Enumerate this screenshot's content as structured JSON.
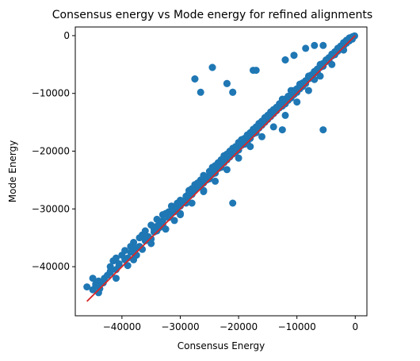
{
  "chart_data": {
    "type": "scatter",
    "title": "Consensus energy vs Mode energy for refined alignments",
    "xlabel": "Consensus Energy",
    "ylabel": "Mode Energy",
    "xlim": [
      -48000,
      2000
    ],
    "ylim": [
      -48500,
      1500
    ],
    "xticks": [
      -40000,
      -30000,
      -20000,
      -10000,
      0
    ],
    "xtick_labels": [
      "−40000",
      "−30000",
      "−20000",
      "−10000",
      "0"
    ],
    "yticks": [
      -40000,
      -30000,
      -20000,
      -10000,
      0
    ],
    "ytick_labels": [
      "−40000",
      "−30000",
      "−20000",
      "−10000",
      "0"
    ],
    "grid": false,
    "colors": {
      "points": "#1f77b4",
      "fit_line": "#d62728"
    },
    "series": [
      {
        "kind": "points",
        "x": [
          -46000,
          -45000,
          -44500,
          -44000,
          -43800,
          -43200,
          -42500,
          -42000,
          -41500,
          -41000,
          -40500,
          -40000,
          -39500,
          -39000,
          -38500,
          -38000,
          -37500,
          -37000,
          -36500,
          -36000,
          -35500,
          -35000,
          -34500,
          -34000,
          -33500,
          -33000,
          -32500,
          -32000,
          -31500,
          -31000,
          -30500,
          -30000,
          -29500,
          -29000,
          -28500,
          -28000,
          -27500,
          -27000,
          -26500,
          -26000,
          -25500,
          -25000,
          -24500,
          -24000,
          -23500,
          -23000,
          -22500,
          -22000,
          -21500,
          -21000,
          -20500,
          -20000,
          -19500,
          -19000,
          -18500,
          -18000,
          -17500,
          -17000,
          -16500,
          -16000,
          -15500,
          -15000,
          -14500,
          -14000,
          -13500,
          -13000,
          -12500,
          -12000,
          -11500,
          -11000,
          -10500,
          -10000,
          -9500,
          -9000,
          -8500,
          -8000,
          -7500,
          -7000,
          -6500,
          -6000,
          -5500,
          -5000,
          -4500,
          -4000,
          -3500,
          -3000,
          -2500,
          -2000,
          -1500,
          -1000,
          -500,
          -200,
          -100,
          -45000,
          -43000,
          -41000,
          -39500,
          -38000,
          -36000,
          -34500,
          -33000,
          -32000,
          -31000,
          -30000,
          -29000,
          -28000,
          -27000,
          -26000,
          -25000,
          -24000,
          -23000,
          -22000,
          -21000,
          -20000,
          -19000,
          -18000,
          -17000,
          -16000,
          -15000,
          -14000,
          -13000,
          -12000,
          -11000,
          -10000,
          -9000,
          -8000,
          -7000,
          -6000,
          -5000,
          -4000,
          -3000,
          -2000,
          -1000,
          -44000,
          -42000,
          -40500,
          -38500,
          -37000,
          -35500,
          -34000,
          -33000,
          -31500,
          -30500,
          -29500,
          -28500,
          -27500,
          -26500,
          -25500,
          -24500,
          -23500,
          -22500,
          -21500,
          -20500,
          -19500,
          -18500,
          -17500,
          -16500,
          -15500,
          -14500,
          -13500,
          -12500,
          -11500,
          -10500,
          -9500,
          -8500,
          -7500,
          -6500,
          -5500,
          -4500,
          -3500,
          -2500,
          -1500,
          -800,
          -35000,
          -32500,
          -30000,
          -28000,
          -26000,
          -24000,
          -22000,
          -20000,
          -18000,
          -16000,
          -14000,
          -12000,
          -10000,
          -8000,
          -6000,
          -4000,
          -2000,
          -27500,
          -9000,
          -5500,
          -24500,
          -22000,
          -21000,
          -17000,
          -12000,
          -10500,
          -25000,
          -27000,
          -8000,
          -12500,
          -6000,
          -11000,
          -13000,
          -20500,
          -15000,
          -18500,
          -23000,
          -26000,
          -29000,
          -30000,
          -31000,
          -33500,
          -34000,
          -35000,
          -36500,
          -37500,
          -38000,
          -39000,
          -41000,
          -44000,
          -4000,
          -3000,
          -2000,
          -1000,
          -500,
          -7000,
          -9500,
          -13500,
          -15500,
          -16500,
          -17500,
          -19500,
          -28500,
          -32000,
          -36000,
          -42000,
          -44500
        ],
        "y": [
          -43500,
          -42000,
          -43000,
          -42500,
          -43800,
          -42800,
          -41500,
          -40000,
          -39000,
          -38500,
          -39800,
          -38000,
          -37200,
          -38500,
          -36500,
          -35800,
          -36800,
          -35000,
          -34500,
          -33800,
          -34800,
          -32800,
          -33500,
          -31800,
          -32500,
          -31000,
          -30800,
          -30500,
          -29500,
          -29800,
          -29000,
          -28500,
          -28800,
          -27800,
          -26800,
          -26500,
          -25800,
          -25500,
          -25000,
          -24200,
          -24500,
          -23500,
          -22800,
          -22500,
          -22000,
          -21500,
          -20800,
          -20500,
          -20000,
          -19500,
          -19200,
          -18500,
          -18000,
          -17800,
          -17200,
          -16800,
          -16200,
          -15800,
          -15200,
          -14800,
          -14200,
          -13800,
          -13200,
          -12800,
          -12500,
          -12000,
          -11500,
          -11000,
          -10500,
          -10200,
          -9500,
          -9200,
          -8800,
          -8200,
          -7800,
          -7200,
          -6800,
          -6200,
          -5800,
          -5200,
          -4800,
          -4200,
          -3800,
          -3200,
          -2800,
          -2200,
          -1800,
          -1200,
          -800,
          -400,
          -200,
          -100,
          -50,
          -44000,
          -42000,
          -40500,
          -38800,
          -37500,
          -35500,
          -34000,
          -32800,
          -31500,
          -30500,
          -29500,
          -28200,
          -27500,
          -26200,
          -25500,
          -24500,
          -23800,
          -22500,
          -21500,
          -20500,
          -19800,
          -18800,
          -17800,
          -16800,
          -15500,
          -14500,
          -13500,
          -12500,
          -11800,
          -10800,
          -9800,
          -8800,
          -7500,
          -6500,
          -5500,
          -4500,
          -3500,
          -2500,
          -1500,
          -600,
          -43000,
          -41000,
          -39500,
          -37500,
          -36500,
          -35000,
          -33000,
          -32000,
          -30800,
          -29800,
          -28800,
          -27800,
          -26800,
          -26000,
          -25000,
          -24000,
          -23000,
          -22000,
          -21000,
          -20200,
          -19000,
          -18200,
          -17000,
          -16000,
          -15000,
          -14000,
          -13000,
          -12200,
          -11200,
          -10200,
          -9200,
          -8300,
          -7300,
          -6300,
          -5300,
          -4300,
          -3300,
          -2300,
          -1300,
          -500,
          -36000,
          -33500,
          -31000,
          -29000,
          -27000,
          -25200,
          -23200,
          -21200,
          -19200,
          -17500,
          -15800,
          -13800,
          -11500,
          -9500,
          -7000,
          -5000,
          -2500,
          -7500,
          -8200,
          -1700,
          -5500,
          -8300,
          -9800,
          -6000,
          -4200,
          -3400,
          -24800,
          -25500,
          -7000,
          -11000,
          -5000,
          -9500,
          -11800,
          -19500,
          -14300,
          -18500,
          -22800,
          -26800,
          -29000,
          -30800,
          -32000,
          -33200,
          -33800,
          -35200,
          -37000,
          -38000,
          -38800,
          -39800,
          -42000,
          -44500,
          -3500,
          -2700,
          -1800,
          -900,
          -600,
          -7600,
          -8400,
          -12400,
          -14900,
          -15900,
          -16900,
          -18700,
          -27200,
          -31200,
          -34700,
          -40800,
          -43200
        ]
      },
      {
        "kind": "outliers",
        "x": [
          -27500,
          -26500,
          -24500,
          -22000,
          -21000,
          -17500,
          -15000,
          -12500,
          -12000,
          -10500,
          -9000,
          -8500,
          -7000,
          -5500,
          -21000
        ],
        "y": [
          -7500,
          -9800,
          -5500,
          -8300,
          -9800,
          -6000,
          -13800,
          -16300,
          -4200,
          -3400,
          -8200,
          -2200,
          -1700,
          -16300,
          -29000
        ]
      },
      {
        "kind": "fit_line",
        "x": [
          -46000,
          0
        ],
        "y": [
          -46000,
          0
        ]
      }
    ]
  }
}
